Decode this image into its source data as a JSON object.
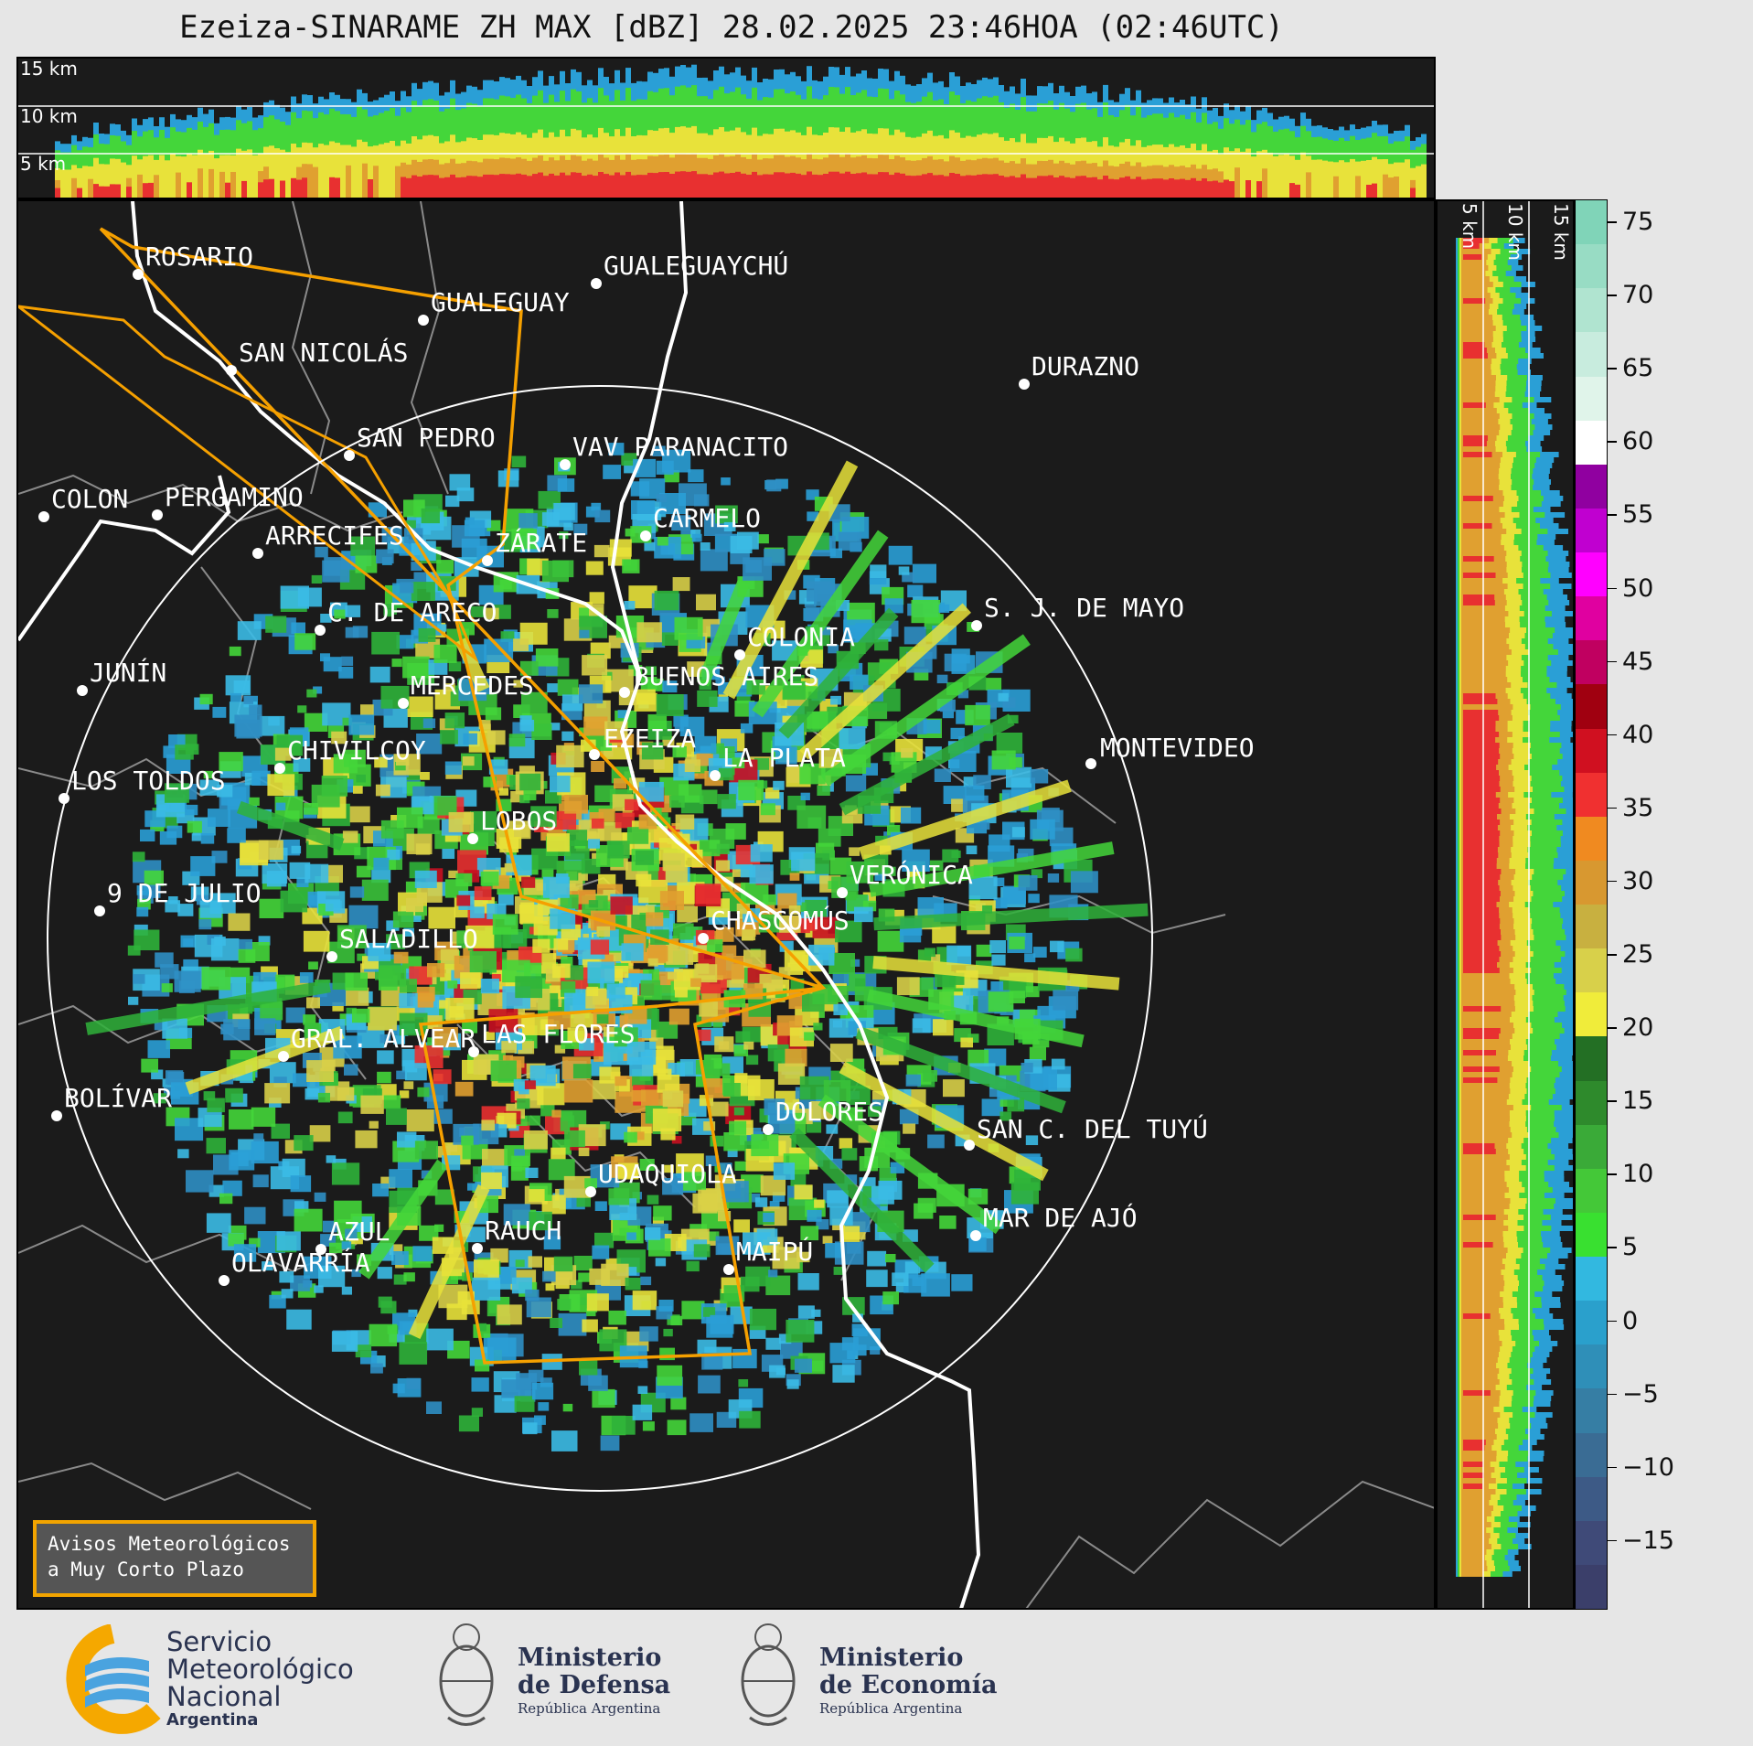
{
  "title": "Ezeiza-SINARAME ZH MAX [dBZ] 28.02.2025 23:46HOA (02:46UTC)",
  "top_section": {
    "altitude_labels": [
      "15 km",
      "10 km",
      "5 km"
    ]
  },
  "right_section": {
    "altitude_labels": [
      "5 km",
      "10 km",
      "15 km"
    ]
  },
  "cities": [
    "ROSARIO",
    "GUALEGUAYCHÚ",
    "GUALEGUAY",
    "SAN NICOLÁS",
    "DURAZNO",
    "SAN PEDRO",
    "VAV PARANACITO",
    "COLON",
    "PERGAMINO",
    "CARMELO",
    "ARRECIFES",
    "ZÁRATE",
    "S. J. DE MAYO",
    "C. DE ARECO",
    "COLONIA",
    "JUNÍN",
    "BUENOS AIRES",
    "MERCEDES",
    "EZEIZA",
    "MONTEVIDEO",
    "CHIVILCOY",
    "LA PLATA",
    "LOS TOLDOS",
    "LOBOS",
    "VERÓNICA",
    "9 DE JULIO",
    "CHASCOMÚS",
    "SALADILLO",
    "LAS FLORES",
    "GRAL. ALVEAR",
    "DOLORES",
    "BOLÍVAR",
    "SAN C. DEL TUYÚ",
    "UDAQUIOLA",
    "MAR DE AJÓ",
    "AZUL",
    "RAUCH",
    "OLAVARRÍA",
    "MAIPÚ"
  ],
  "colorbar": {
    "unit": "dBZ",
    "ticks": [
      "75",
      "70",
      "65",
      "60",
      "55",
      "50",
      "45",
      "40",
      "35",
      "30",
      "25",
      "20",
      "15",
      "10",
      "5",
      "0",
      "−5",
      "−10",
      "−15"
    ],
    "colors": [
      "#3b3f6a",
      "#3f4a78",
      "#3d5a86",
      "#3a6c94",
      "#367ea4",
      "#2f8fb8",
      "#2aa0cc",
      "#32b8e0",
      "#39e030",
      "#44c838",
      "#3aaa38",
      "#2e8a2c",
      "#236f24",
      "#f0ec3a",
      "#d8d04a",
      "#c8b040",
      "#d89830",
      "#f08a20",
      "#f03030",
      "#d01020",
      "#a00010",
      "#c00060",
      "#e000a0",
      "#ff00ff",
      "#c000d0",
      "#9000a0",
      "#ffffff",
      "#e0f4ea",
      "#c8ecde",
      "#b0e4d0",
      "#98dcc4",
      "#80d4b8"
    ]
  },
  "warning_box": {
    "line1": "Avisos Meteorológicos",
    "line2": "a Muy Corto Plazo"
  },
  "footer": {
    "smn": {
      "line1": "Servicio",
      "line2": "Meteorológico",
      "line3": "Nacional",
      "country": "Argentina"
    },
    "defensa": {
      "line1": "Ministerio",
      "line2": "de Defensa",
      "sub": "República Argentina"
    },
    "economia": {
      "line1": "Ministerio",
      "line2": "de Economía",
      "sub": "República Argentina"
    }
  },
  "palette": {
    "background": "#1b1b1b",
    "range_ring": "#ffffff",
    "warning_polygon": "#f5a000",
    "coast": "#ffffff",
    "borders": "#8a8a8a"
  }
}
